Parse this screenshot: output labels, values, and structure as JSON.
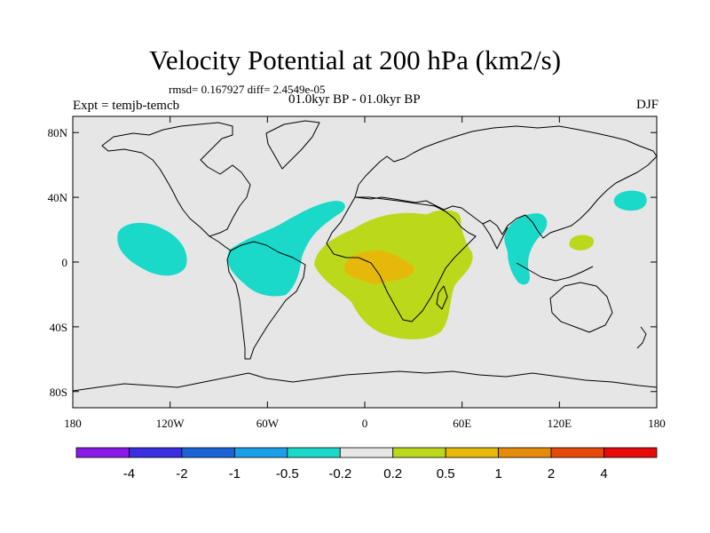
{
  "title": "Velocity Potential at 200 hPa (km2/s)",
  "stats": "rmsd= 0.167927 diff= 2.4549e-05",
  "experiment": "Expt = temjb-temcb",
  "period": "01.0kyr BP - 01.0kyr BP",
  "season": "DJF",
  "axes": {
    "lon_ticks": [
      {
        "value": -180,
        "label": "180"
      },
      {
        "value": -120,
        "label": "120W"
      },
      {
        "value": -60,
        "label": "60W"
      },
      {
        "value": 0,
        "label": "0"
      },
      {
        "value": 60,
        "label": "60E"
      },
      {
        "value": 120,
        "label": "120E"
      },
      {
        "value": 180,
        "label": "180"
      }
    ],
    "lat_ticks": [
      {
        "value": 80,
        "label": "80N"
      },
      {
        "value": 40,
        "label": "40N"
      },
      {
        "value": 0,
        "label": "0"
      },
      {
        "value": -40,
        "label": "40S"
      },
      {
        "value": -80,
        "label": "80S"
      }
    ]
  },
  "colorbar": {
    "colors": [
      "#8a1be6",
      "#3a2ee0",
      "#1a64d8",
      "#1aa0e6",
      "#1ad9c8",
      "#e6e6e6",
      "#bcd81a",
      "#e6b80a",
      "#e68a0a",
      "#e64a0a",
      "#e60a0a"
    ],
    "labels": [
      "-4",
      "-2",
      "-1",
      "-0.5",
      "-0.2",
      "0.2",
      "0.5",
      "1",
      "2",
      "4"
    ]
  },
  "colors": {
    "ocean_bg": "#e6e6e6",
    "negative_light": "#1ad9c8",
    "positive_light": "#bcd81a",
    "positive_mid": "#e6b80a"
  }
}
